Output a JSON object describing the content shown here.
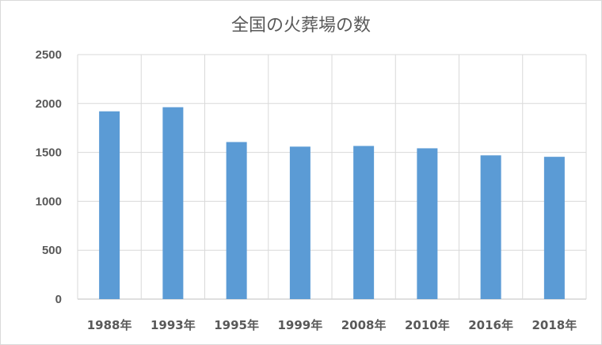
{
  "chart_data": {
    "type": "bar",
    "title": "全国の火葬場の数",
    "xlabel": "",
    "ylabel": "",
    "categories": [
      "1988年",
      "1993年",
      "1995年",
      "1999年",
      "2008年",
      "2010年",
      "2016年",
      "2018年"
    ],
    "values": [
      1920,
      1962,
      1606,
      1559,
      1566,
      1542,
      1470,
      1455
    ],
    "ylim": [
      0,
      2500
    ],
    "yticks": [
      "0",
      "500",
      "1000",
      "1500",
      "2000",
      "2500"
    ],
    "grid": true,
    "legend": "none",
    "bar_color": "#5b9bd5"
  }
}
